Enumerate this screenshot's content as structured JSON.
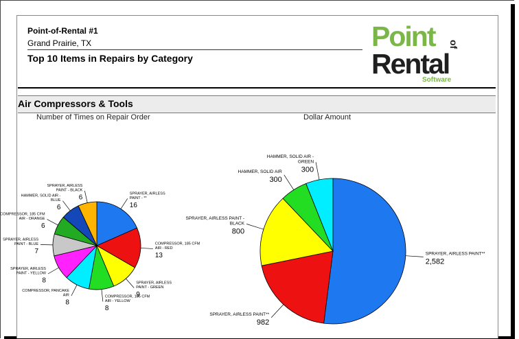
{
  "header": {
    "company": "Point-of-Rental #1",
    "location": "Grand Prairie, TX",
    "report_title": "Top 10 Items in Repairs by Category"
  },
  "logo": {
    "word1": "Point",
    "word2": "of",
    "word3": "Rental",
    "word4": "Software",
    "green": "#7ab648",
    "dark": "#1f1f1f"
  },
  "category": "Air Compressors & Tools",
  "colors": {
    "blue": "#1e78f0",
    "red": "#ee1111",
    "yellow": "#ffff00",
    "green": "#22dd22",
    "cyan": "#00eeff",
    "magenta": "#ff22ff",
    "gray": "#c8c8c8",
    "darkgreen": "#22aa22",
    "navy": "#1447b8",
    "orange": "#ffb400"
  },
  "chart_data": [
    {
      "type": "pie",
      "title": "Number of Times on Repair Order",
      "slices": [
        {
          "label": "SPRAYER, AIRLESS PAINT - **",
          "value": 16,
          "color": "#1e78f0"
        },
        {
          "label": "COMPRESSOR, 185 CFM AIR - RED",
          "value": 13,
          "color": "#ee1111"
        },
        {
          "label": "SPRAYER, AIRLESS PAINT - GREEN",
          "value": 9,
          "color": "#ffff00"
        },
        {
          "label": "COMPRESSOR, 185 CFM AIR - YELLOW",
          "value": 8,
          "color": "#22dd22"
        },
        {
          "label": "COMPRESSOR, PANCAKE AIR",
          "value": 8,
          "color": "#00eeff"
        },
        {
          "label": "SPRAYER, AIRLESS PAINT - YELLOW",
          "value": 8,
          "color": "#ff22ff"
        },
        {
          "label": "SPRAYER, AIRLESS PAINT - BLUE",
          "value": 7,
          "color": "#c8c8c8"
        },
        {
          "label": "COMPRESSOR, 185 CFM AIR - ORANGE",
          "value": 6,
          "color": "#22aa22"
        },
        {
          "label": "HAMMER, SOLID AIR - BLUE",
          "value": 6,
          "color": "#1447b8"
        },
        {
          "label": "SPRAYER, AIRLESS PAINT - BLACK",
          "value": 6,
          "color": "#ffb400"
        }
      ]
    },
    {
      "type": "pie",
      "title": "Dollar Amount",
      "slices": [
        {
          "label": "SPRAYER, AIRLESS PAINT**",
          "value": 2582,
          "display": "2,582",
          "color": "#1e78f0"
        },
        {
          "label": "SPRAYER, AIRLESS PAINT**",
          "value": 982,
          "display": "982",
          "color": "#ee1111"
        },
        {
          "label": "SPRAYER, AIRLESS PAINT - BLACK",
          "value": 800,
          "display": "800",
          "color": "#ffff00"
        },
        {
          "label": "HAMMER, SOLID AIR",
          "value": 300,
          "display": "300",
          "color": "#22dd22"
        },
        {
          "label": "HAMMER, SOLID AIR - GREEN",
          "value": 300,
          "display": "300",
          "color": "#00eeff"
        }
      ]
    }
  ]
}
